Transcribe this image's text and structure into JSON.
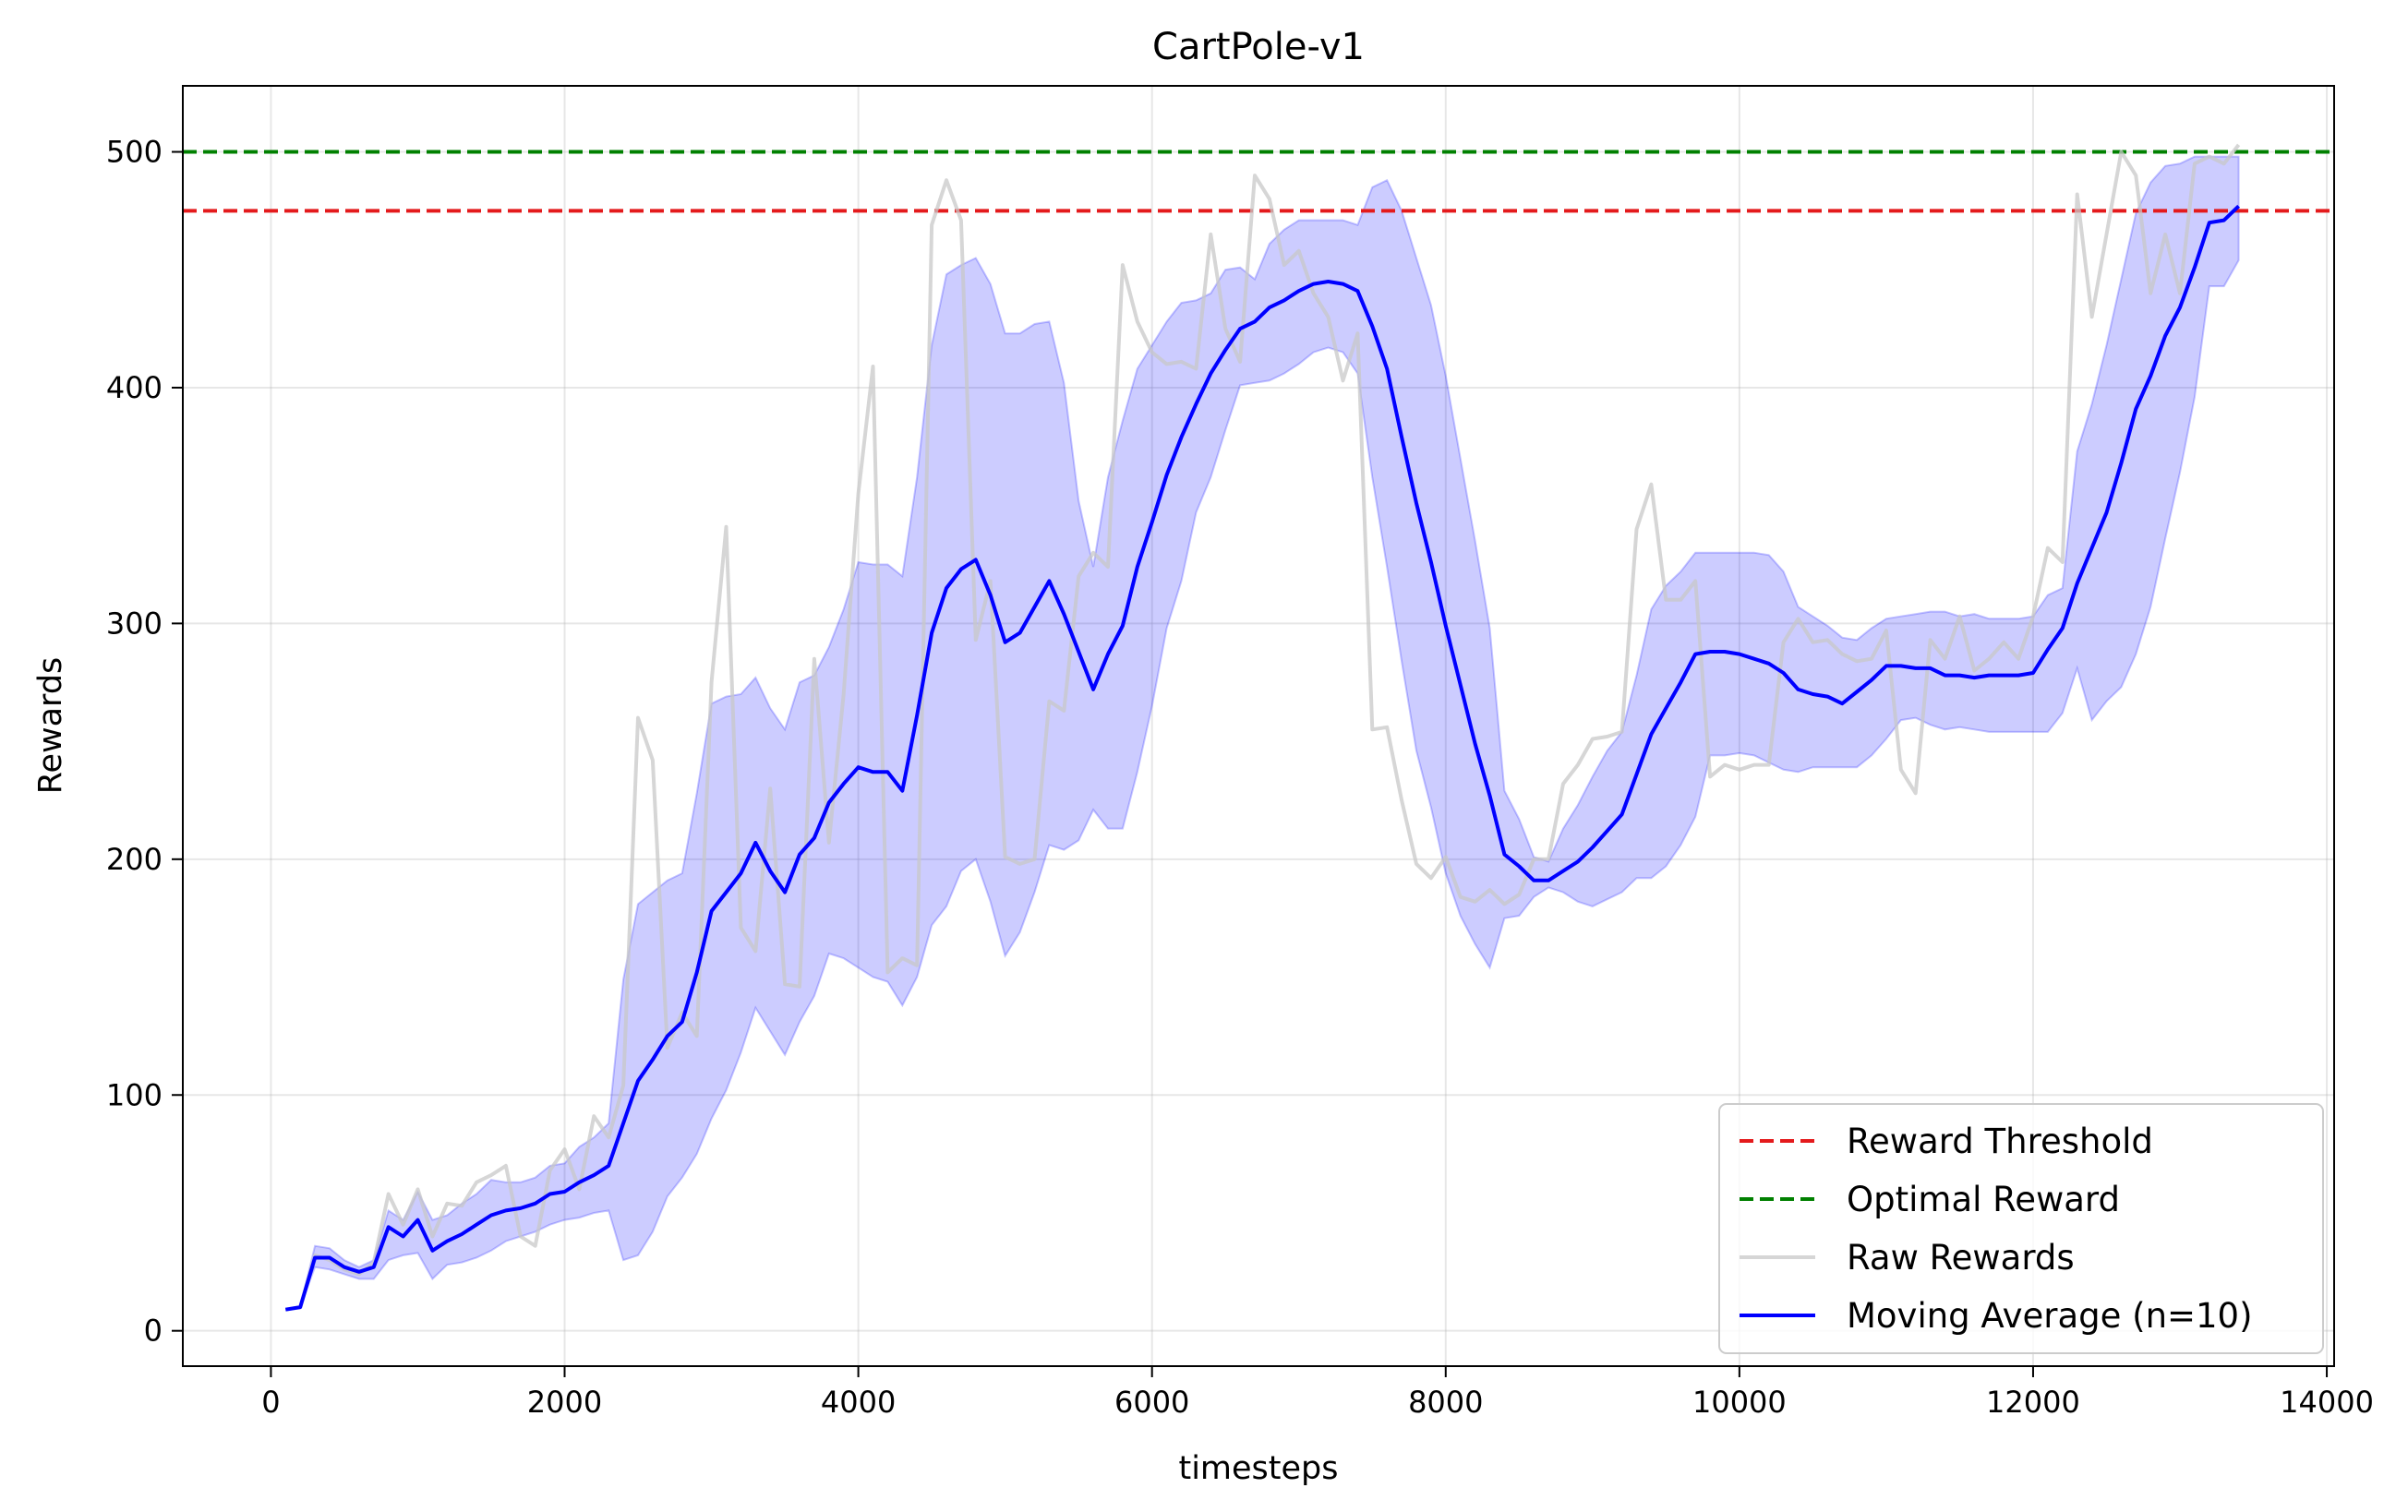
{
  "chart_data": {
    "type": "line",
    "title": "CartPole-v1",
    "xlabel": "timesteps",
    "ylabel": "Rewards",
    "xlim": [
      -600,
      14050
    ],
    "ylim": [
      -15,
      528
    ],
    "grid": true,
    "legend_position": "lower-right",
    "xticks": [
      0,
      2000,
      4000,
      6000,
      8000,
      10000,
      12000,
      14000
    ],
    "xtick_labels": [
      "0",
      "2000",
      "4000",
      "6000",
      "8000",
      "10000",
      "12000",
      "14000"
    ],
    "yticks": [
      0,
      100,
      200,
      300,
      400,
      500
    ],
    "ytick_labels": [
      "0",
      "100",
      "200",
      "300",
      "400",
      "500"
    ],
    "reference_lines": [
      {
        "name": "Reward Threshold",
        "y": 475,
        "color": "#e41a1c",
        "style": "dashed"
      },
      {
        "name": "Optimal Reward",
        "y": 500,
        "color": "#008000",
        "style": "dashed"
      }
    ],
    "series": [
      {
        "name": "Raw Rewards",
        "color": "#c8c8c8",
        "x": [
          100,
          200,
          300,
          400,
          500,
          600,
          700,
          800,
          900,
          1000,
          1100,
          1200,
          1300,
          1400,
          1500,
          1600,
          1700,
          1800,
          1900,
          2000,
          2100,
          2200,
          2300,
          2400,
          2500,
          2600,
          2700,
          2800,
          2900,
          3000,
          3100,
          3200,
          3300,
          3400,
          3500,
          3600,
          3700,
          3800,
          3900,
          4000,
          4100,
          4200,
          4300,
          4400,
          4500,
          4600,
          4700,
          4800,
          4900,
          5000,
          5100,
          5200,
          5300,
          5400,
          5500,
          5600,
          5700,
          5800,
          5900,
          6000,
          6100,
          6200,
          6300,
          6400,
          6500,
          6600,
          6700,
          6800,
          6900,
          7000,
          7100,
          7200,
          7300,
          7400,
          7500,
          7600,
          7700,
          7800,
          7900,
          8000,
          8100,
          8200,
          8300,
          8400,
          8500,
          8600,
          8700,
          8800,
          8900,
          9000,
          9100,
          9200,
          9300,
          9400,
          9500,
          9600,
          9700,
          9800,
          9900,
          10000,
          10100,
          10200,
          10300,
          10400,
          10500,
          10600,
          10700,
          10800,
          10900,
          11000,
          11100,
          11200,
          11300,
          11400,
          11500,
          11600,
          11700,
          11800,
          11900,
          12000,
          12100,
          12200,
          12300,
          12400,
          12500,
          12600,
          12700,
          12800,
          12900,
          13000,
          13100,
          13200,
          13300,
          13400
        ],
        "values": [
          9,
          10,
          32,
          30,
          26,
          24,
          29,
          58,
          45,
          60,
          40,
          54,
          53,
          63,
          66,
          70,
          40,
          36,
          68,
          77,
          60,
          91,
          82,
          104,
          260,
          242,
          120,
          135,
          125,
          275,
          341,
          171,
          161,
          230,
          147,
          146,
          285,
          207,
          270,
          355,
          409,
          152,
          158,
          155,
          469,
          488,
          471,
          293,
          318,
          201,
          198,
          200,
          267,
          263,
          320,
          330,
          324,
          452,
          428,
          415,
          410,
          411,
          408,
          465,
          425,
          411,
          490,
          480,
          452,
          458,
          440,
          430,
          403,
          423,
          255,
          256,
          225,
          198,
          192,
          201,
          184,
          182,
          187,
          181,
          185,
          200,
          200,
          232,
          240,
          251,
          252,
          254,
          340,
          359,
          310,
          310,
          318,
          235,
          240,
          238,
          240,
          240,
          292,
          302,
          292,
          293,
          287,
          284,
          285,
          297,
          238,
          228,
          293,
          285,
          303,
          280,
          285,
          292,
          285,
          303,
          332,
          326,
          482,
          430,
          465,
          500,
          490,
          440,
          465,
          440,
          495,
          498,
          495,
          503
        ]
      },
      {
        "name": "Moving Average (n=10)",
        "color": "#0000ff",
        "x": [
          100,
          200,
          300,
          400,
          500,
          600,
          700,
          800,
          900,
          1000,
          1100,
          1200,
          1300,
          1400,
          1500,
          1600,
          1700,
          1800,
          1900,
          2000,
          2100,
          2200,
          2300,
          2400,
          2500,
          2600,
          2700,
          2800,
          2900,
          3000,
          3100,
          3200,
          3300,
          3400,
          3500,
          3600,
          3700,
          3800,
          3900,
          4000,
          4100,
          4200,
          4300,
          4400,
          4500,
          4600,
          4700,
          4800,
          4900,
          5000,
          5100,
          5200,
          5300,
          5400,
          5500,
          5600,
          5700,
          5800,
          5900,
          6000,
          6100,
          6200,
          6300,
          6400,
          6500,
          6600,
          6700,
          6800,
          6900,
          7000,
          7100,
          7200,
          7300,
          7400,
          7500,
          7600,
          7700,
          7800,
          7900,
          8000,
          8100,
          8200,
          8300,
          8400,
          8500,
          8600,
          8700,
          8800,
          8900,
          9000,
          9100,
          9200,
          9300,
          9400,
          9500,
          9600,
          9700,
          9800,
          9900,
          10000,
          10100,
          10200,
          10300,
          10400,
          10500,
          10600,
          10700,
          10800,
          10900,
          11000,
          11100,
          11200,
          11300,
          11400,
          11500,
          11600,
          11700,
          11800,
          11900,
          12000,
          12100,
          12200,
          12300,
          12400,
          12500,
          12600,
          12700,
          12800,
          12900,
          13000,
          13100,
          13200,
          13300,
          13400
        ],
        "values": [
          9,
          10,
          31,
          31,
          27,
          25,
          27,
          44,
          40,
          47,
          34,
          38,
          41,
          45,
          49,
          51,
          52,
          54,
          58,
          59,
          63,
          66,
          70,
          88,
          106,
          115,
          125,
          131,
          152,
          178,
          186,
          194,
          207,
          195,
          186,
          202,
          209,
          224,
          232,
          239,
          237,
          237,
          229,
          261,
          296,
          315,
          323,
          327,
          312,
          292,
          296,
          307,
          318,
          304,
          288,
          272,
          287,
          299,
          324,
          343,
          363,
          379,
          393,
          406,
          416,
          425,
          428,
          434,
          437,
          441,
          444,
          445,
          444,
          441,
          426,
          408,
          379,
          351,
          326,
          299,
          274,
          249,
          227,
          202,
          197,
          191,
          191,
          195,
          199,
          205,
          212,
          219,
          236,
          253,
          264,
          275,
          287,
          288,
          288,
          287,
          285,
          283,
          279,
          272,
          270,
          269,
          266,
          271,
          276,
          282,
          282,
          281,
          281,
          278,
          278,
          277,
          278,
          278,
          278,
          279,
          289,
          298,
          317,
          332,
          347,
          368,
          391,
          405,
          422,
          434,
          451,
          470,
          471,
          477
        ]
      }
    ],
    "band": {
      "color": "#0000ff",
      "opacity": 0.2,
      "x": [
        100,
        200,
        300,
        400,
        500,
        600,
        700,
        800,
        900,
        1000,
        1100,
        1200,
        1300,
        1400,
        1500,
        1600,
        1700,
        1800,
        1900,
        2000,
        2100,
        2200,
        2300,
        2400,
        2500,
        2600,
        2700,
        2800,
        2900,
        3000,
        3100,
        3200,
        3300,
        3400,
        3500,
        3600,
        3700,
        3800,
        3900,
        4000,
        4100,
        4200,
        4300,
        4400,
        4500,
        4600,
        4700,
        4800,
        4900,
        5000,
        5100,
        5200,
        5300,
        5400,
        5500,
        5600,
        5700,
        5800,
        5900,
        6000,
        6100,
        6200,
        6300,
        6400,
        6500,
        6600,
        6700,
        6800,
        6900,
        7000,
        7100,
        7200,
        7300,
        7400,
        7500,
        7600,
        7700,
        7800,
        7900,
        8000,
        8100,
        8200,
        8300,
        8400,
        8500,
        8600,
        8700,
        8800,
        8900,
        9000,
        9100,
        9200,
        9300,
        9400,
        9500,
        9600,
        9700,
        9800,
        9900,
        10000,
        10100,
        10200,
        10300,
        10400,
        10500,
        10600,
        10700,
        10800,
        10900,
        11000,
        11100,
        11200,
        11300,
        11400,
        11500,
        11600,
        11700,
        11800,
        11900,
        12000,
        12100,
        12200,
        12300,
        12400,
        12500,
        12600,
        12700,
        12800,
        12900,
        13000,
        13100,
        13200,
        13300,
        13400
      ],
      "lower": [
        9,
        10,
        27,
        26,
        24,
        22,
        22,
        30,
        32,
        33,
        22,
        28,
        29,
        31,
        34,
        38,
        40,
        42,
        45,
        47,
        48,
        50,
        51,
        30,
        32,
        42,
        57,
        65,
        75,
        90,
        102,
        118,
        137,
        127,
        117,
        131,
        142,
        160,
        158,
        154,
        150,
        148,
        138,
        150,
        172,
        180,
        195,
        200,
        182,
        159,
        169,
        186,
        206,
        204,
        208,
        221,
        213,
        213,
        237,
        265,
        298,
        318,
        347,
        362,
        382,
        401,
        402,
        403,
        406,
        410,
        415,
        417,
        415,
        406,
        362,
        324,
        284,
        246,
        222,
        194,
        176,
        164,
        154,
        175,
        176,
        184,
        188,
        186,
        182,
        180,
        183,
        186,
        192,
        192,
        197,
        206,
        218,
        244,
        244,
        245,
        244,
        241,
        238,
        237,
        239,
        239,
        239,
        239,
        244,
        251,
        259,
        260,
        257,
        255,
        256,
        255,
        254,
        254,
        254,
        254,
        254,
        262,
        281,
        259,
        267,
        273,
        287,
        307,
        336,
        364,
        396,
        443,
        443,
        454
      ],
      "upper": [
        9,
        10,
        36,
        35,
        30,
        27,
        30,
        51,
        47,
        59,
        47,
        49,
        54,
        58,
        64,
        63,
        63,
        65,
        70,
        71,
        78,
        82,
        88,
        149,
        181,
        186,
        191,
        194,
        228,
        266,
        269,
        270,
        277,
        264,
        255,
        275,
        278,
        290,
        306,
        326,
        325,
        325,
        320,
        362,
        418,
        448,
        452,
        455,
        444,
        423,
        423,
        427,
        428,
        402,
        352,
        324,
        362,
        386,
        408,
        418,
        428,
        436,
        437,
        440,
        450,
        451,
        446,
        461,
        467,
        471,
        471,
        471,
        471,
        469,
        485,
        488,
        475,
        455,
        435,
        405,
        370,
        335,
        298,
        229,
        217,
        201,
        199,
        213,
        223,
        235,
        246,
        254,
        278,
        306,
        316,
        322,
        330,
        330,
        330,
        330,
        330,
        329,
        322,
        307,
        303,
        299,
        294,
        293,
        298,
        302,
        303,
        304,
        305,
        305,
        303,
        304,
        302,
        302,
        302,
        303,
        312,
        315,
        373,
        393,
        418,
        446,
        474,
        487,
        494,
        495,
        498,
        498,
        498,
        498
      ]
    }
  }
}
